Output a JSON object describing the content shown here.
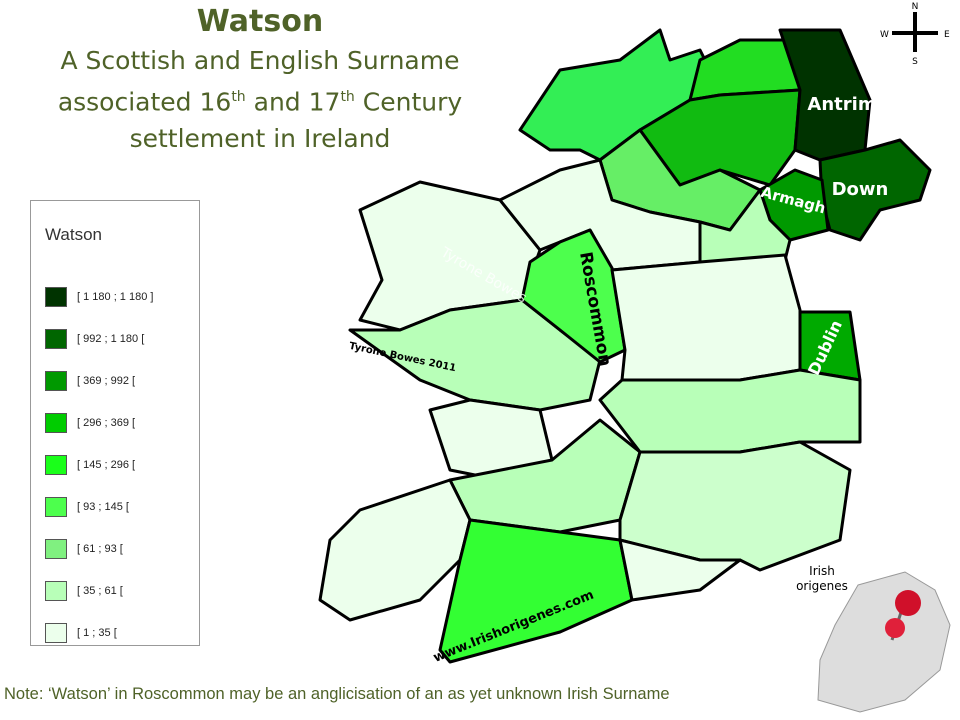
{
  "header": {
    "title": "Watson",
    "subtitle_line1": "A Scottish and English Surname",
    "subtitle_line2": [
      "associated 16",
      "th",
      " and 17",
      "th",
      " Century"
    ],
    "subtitle_line3": "settlement in Ireland"
  },
  "legend": {
    "title": "Watson",
    "items": [
      {
        "label": "[ 1 180 ; 1 180 ]",
        "color": "#003300"
      },
      {
        "label": "[ 992 ; 1 180 [",
        "color": "#006600"
      },
      {
        "label": "[ 369 ; 992 [",
        "color": "#009900"
      },
      {
        "label": "[ 296 ; 369 [",
        "color": "#00cc00"
      },
      {
        "label": "[ 145 ; 296 [",
        "color": "#1aff1a"
      },
      {
        "label": "[ 93 ; 145 [",
        "color": "#4dff4d"
      },
      {
        "label": "[ 61 ; 93 [",
        "color": "#80f080"
      },
      {
        "label": "[ 35 ; 61 [",
        "color": "#b8ffb8"
      },
      {
        "label": "[ 1 ; 35 [",
        "color": "#ecffec"
      }
    ]
  },
  "map": {
    "labels": {
      "antrim": "Antrim",
      "down": "Down",
      "armagh": "Armagh",
      "dublin": "Dublin",
      "roscommon": "Roscommon"
    },
    "watermark": "Tyrone Bowes",
    "credit": "Tyrone Bowes 2011",
    "website": "www.Irishorigenes.com"
  },
  "compass": {
    "n": "N",
    "e": "E",
    "s": "S",
    "w": "W"
  },
  "inset": {
    "label_line1": "Irish",
    "label_line2": "origenes"
  },
  "note": "Note: ‘Watson’ in Roscommon may be an anglicisation of an as yet unknown Irish Surname"
}
